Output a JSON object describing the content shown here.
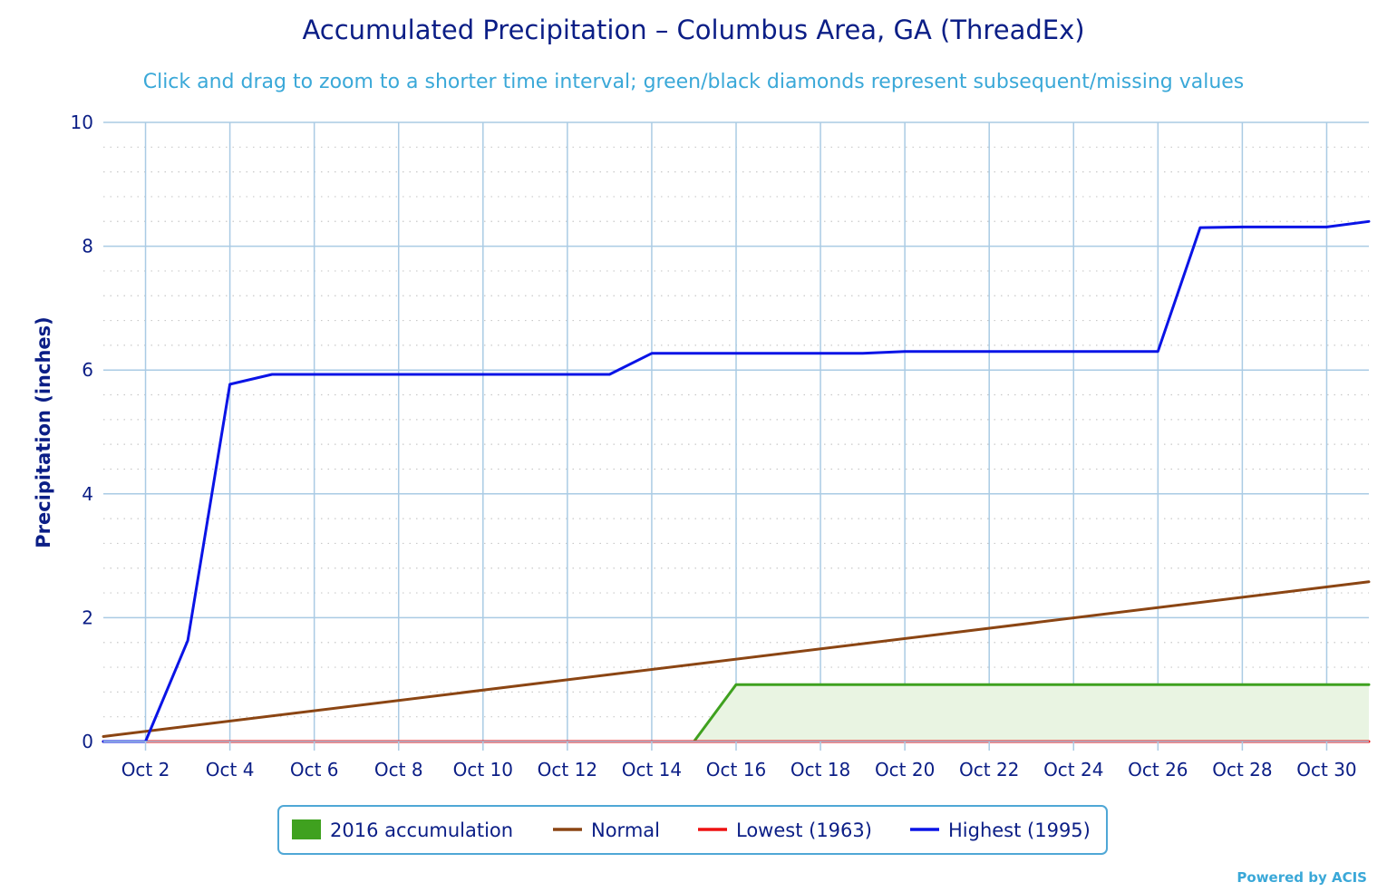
{
  "colors": {
    "text": "#0b1e86",
    "subtitle": "#3aa8d8",
    "grid": "#aacbe4",
    "minor_grid": "#c9c9c9",
    "legend_border": "#4fa7d6"
  },
  "chart_data": {
    "type": "line",
    "title": "Accumulated Precipitation – Columbus Area, GA (ThreadEx)",
    "subtitle": "Click and drag to zoom to a shorter time interval; green/black diamonds represent subsequent/missing values",
    "ylabel": "Precipitation (inches)",
    "xlabel": "",
    "ylim": [
      0,
      10
    ],
    "xlim": [
      1,
      31
    ],
    "y_ticks": [
      0,
      2,
      4,
      6,
      8,
      10
    ],
    "y_tick_labels": [
      "0",
      "2",
      "4",
      "6",
      "8",
      "10"
    ],
    "x_ticks": [
      2,
      4,
      6,
      8,
      10,
      12,
      14,
      16,
      18,
      20,
      22,
      24,
      26,
      28,
      30
    ],
    "x_tick_labels": [
      "Oct 2",
      "Oct 4",
      "Oct 6",
      "Oct 8",
      "Oct 10",
      "Oct 12",
      "Oct 14",
      "Oct 16",
      "Oct 18",
      "Oct 20",
      "Oct 22",
      "Oct 24",
      "Oct 26",
      "Oct 28",
      "Oct 30"
    ],
    "grid": true,
    "legend_position": "bottom-center",
    "series": [
      {
        "name": "2016 accumulation",
        "style": "area",
        "color": "#3fa11f",
        "fill": "#e9f4e2",
        "x": [
          1,
          2,
          3,
          4,
          5,
          6,
          7,
          8,
          9,
          10,
          11,
          12,
          13,
          14,
          15,
          16,
          17,
          18,
          19,
          20,
          21,
          22,
          23,
          24,
          25,
          26,
          27,
          28,
          29,
          30,
          31
        ],
        "y": [
          0,
          0,
          0,
          0,
          0,
          0,
          0,
          0,
          0,
          0,
          0,
          0,
          0,
          0,
          0,
          0.92,
          0.92,
          0.92,
          0.92,
          0.92,
          0.92,
          0.92,
          0.92,
          0.92,
          0.92,
          0.92,
          0.92,
          0.92,
          0.92,
          0.92,
          0.92
        ]
      },
      {
        "name": "Normal",
        "style": "line",
        "color": "#8b4513",
        "x": [
          1,
          31
        ],
        "y": [
          0.08,
          2.58
        ]
      },
      {
        "name": "Lowest (1963)",
        "style": "line",
        "color": "#ee1111",
        "x": [
          1,
          31
        ],
        "y": [
          0,
          0
        ]
      },
      {
        "name": "Highest (1995)",
        "style": "line",
        "color": "#0a14e6",
        "x": [
          1,
          2,
          3,
          4,
          5,
          6,
          7,
          8,
          9,
          10,
          11,
          12,
          13,
          14,
          15,
          16,
          17,
          18,
          19,
          20,
          21,
          22,
          23,
          24,
          25,
          26,
          27,
          28,
          29,
          30,
          31
        ],
        "y": [
          0,
          0,
          1.63,
          5.77,
          5.93,
          5.93,
          5.93,
          5.93,
          5.93,
          5.93,
          5.93,
          5.93,
          5.93,
          6.27,
          6.27,
          6.27,
          6.27,
          6.27,
          6.27,
          6.3,
          6.3,
          6.3,
          6.3,
          6.3,
          6.3,
          6.3,
          8.3,
          8.31,
          8.31,
          8.31,
          8.4
        ]
      }
    ]
  },
  "credit": "Powered by ACIS"
}
